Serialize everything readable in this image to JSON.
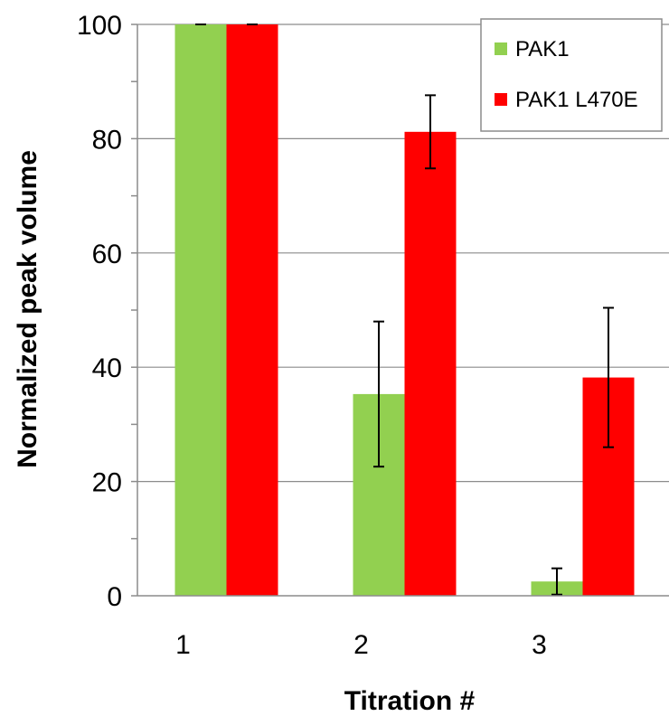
{
  "chart_data": {
    "type": "bar",
    "title": "",
    "xlabel": "Titration #",
    "ylabel": "Normalized peak volume",
    "categories": [
      "1",
      "2",
      "3"
    ],
    "ylim": [
      0,
      100
    ],
    "yticks": [
      0,
      20,
      40,
      60,
      80,
      100
    ],
    "grid": true,
    "legend_position": "top-right",
    "series": [
      {
        "name": "PAK1",
        "color": "#92d050",
        "values": [
          100,
          35.3,
          2.5
        ],
        "errors": [
          0,
          12.7,
          2.3
        ]
      },
      {
        "name": "PAK1 L470E",
        "color": "#ff0000",
        "values": [
          100,
          81.2,
          38.2
        ],
        "errors": [
          0,
          6.4,
          12.2
        ]
      }
    ]
  }
}
